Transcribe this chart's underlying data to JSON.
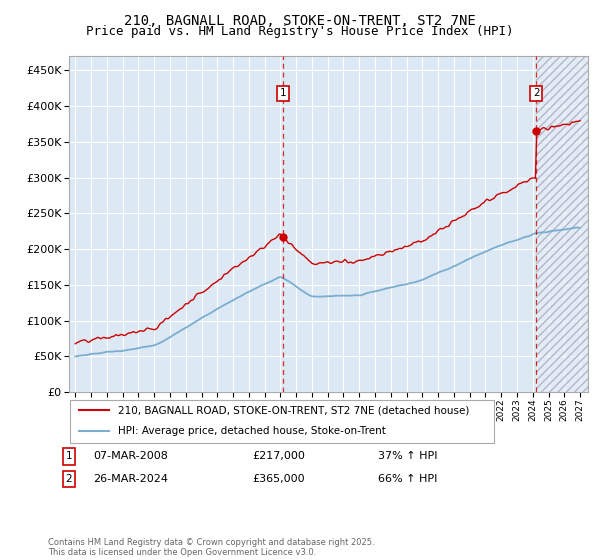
{
  "title": "210, BAGNALL ROAD, STOKE-ON-TRENT, ST2 7NE",
  "subtitle": "Price paid vs. HM Land Registry's House Price Index (HPI)",
  "ylim": [
    0,
    470000
  ],
  "yticks": [
    0,
    50000,
    100000,
    150000,
    200000,
    250000,
    300000,
    350000,
    400000,
    450000
  ],
  "x_start_year": 1995,
  "x_end_year": 2027,
  "background_color": "#ffffff",
  "plot_bg_color": "#dce9f5",
  "grid_color": "#ffffff",
  "red_line_color": "#cc0000",
  "blue_line_color": "#7aadcf",
  "marker1_date": "07-MAR-2008",
  "marker1_price": 217000,
  "marker1_hpi": "37% ↑ HPI",
  "marker1_x": 2008.17,
  "marker2_date": "26-MAR-2024",
  "marker2_price": 365000,
  "marker2_hpi": "66% ↑ HPI",
  "marker2_x": 2024.23,
  "legend_line1": "210, BAGNALL ROAD, STOKE-ON-TRENT, ST2 7NE (detached house)",
  "legend_line2": "HPI: Average price, detached house, Stoke-on-Trent",
  "footer": "Contains HM Land Registry data © Crown copyright and database right 2025.\nThis data is licensed under the Open Government Licence v3.0.",
  "title_fontsize": 10,
  "subtitle_fontsize": 9
}
